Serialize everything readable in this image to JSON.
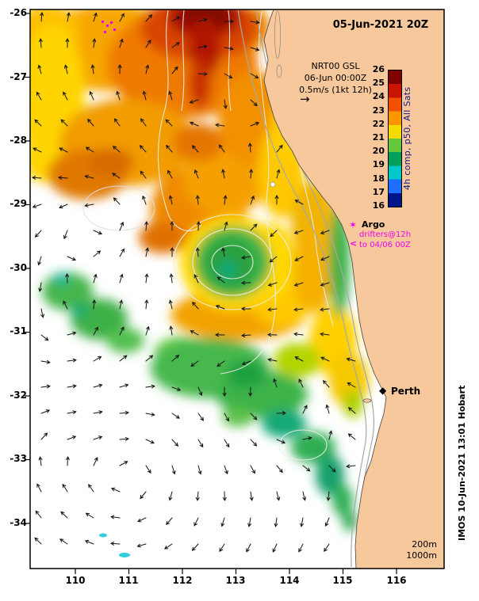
{
  "frame": {
    "title": "05-Jun-2021 20Z"
  },
  "legend": {
    "line1": "NRT00 GSL",
    "line2": "06-Jun 00:00Z",
    "line3": "0.5m/s (1kt 12h)",
    "arrow_glyph": "→"
  },
  "colorbar": {
    "label": "4h comp, p50, All Sats",
    "ticks": [
      "26",
      "25",
      "24",
      "23",
      "22",
      "21",
      "20",
      "19",
      "18",
      "17",
      "16"
    ],
    "colors": [
      "#7f0000",
      "#c81400",
      "#f05000",
      "#fa9600",
      "#f5dc00",
      "#64c83c",
      "#00a05a",
      "#00c8c8",
      "#1e6eff",
      "#00148c"
    ]
  },
  "overlays": {
    "argo_symbol": "✶",
    "argo_label": "Argo",
    "drifters_line1": "drifters@12h",
    "drifter_symbol": "<",
    "drifters_line2": "to 04/06 00Z"
  },
  "city": {
    "symbol": "◆",
    "name": "Perth"
  },
  "depths": {
    "d200": "200m",
    "d1000": "1000m"
  },
  "watermark": "IMOS 10-Jun-2021 13:01 Hobart",
  "axes": {
    "x": [
      "110",
      "111",
      "112",
      "113",
      "114",
      "115",
      "116"
    ],
    "y": [
      "-26",
      "-27",
      "-28",
      "-29",
      "-30",
      "-31",
      "-32",
      "-33",
      "-34"
    ]
  },
  "colors": {
    "land": "#f6c89c",
    "magenta": "#f000f0",
    "colorbar_label_ink": "#14148c",
    "ocean": "#ffffff"
  }
}
